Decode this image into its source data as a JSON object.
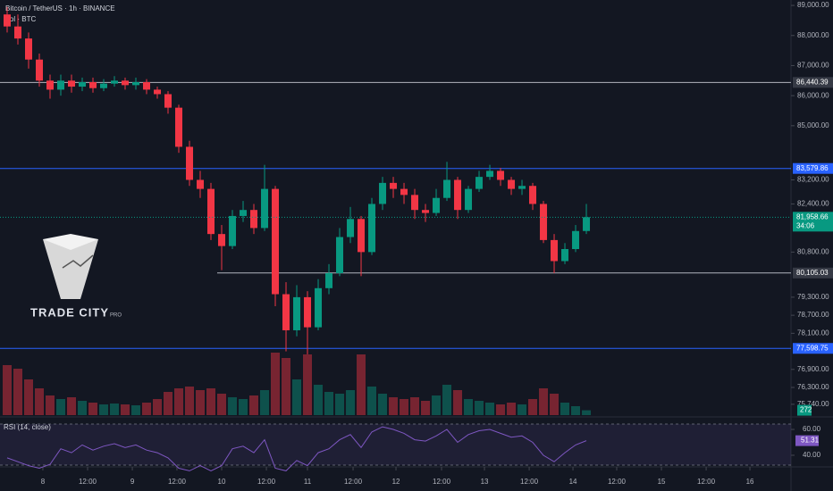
{
  "chart_data": {
    "type": "candlestick",
    "title": "Bitcoin / TetherUS · 1h · BINANCE",
    "volume_label": "Vol · BTC",
    "brand": "TRADE CITY",
    "brand_suffix": "PRO",
    "up_color": "#089981",
    "down_color": "#f23645",
    "open": [
      88700,
      88300,
      87900,
      87200,
      86500,
      86200,
      86500,
      86300,
      86450,
      86250,
      86400,
      86500,
      86350,
      86450,
      86200,
      86050,
      85600,
      84300,
      83200,
      82900,
      81400,
      81000,
      82000,
      82200,
      81600,
      82900,
      79400,
      78200,
      79300,
      78300,
      79600,
      80100,
      81300,
      81900,
      80800,
      82400,
      83100,
      82900,
      82700,
      82200,
      82100,
      82600,
      83200,
      82200,
      82900,
      83300,
      83500,
      83200,
      82900,
      83000,
      82400,
      81200,
      80500,
      80900,
      81500
    ],
    "high": [
      88950,
      88700,
      88100,
      87400,
      86700,
      86700,
      86700,
      86600,
      86600,
      86550,
      86650,
      86600,
      86600,
      86550,
      86300,
      86150,
      85700,
      84500,
      83500,
      83100,
      81700,
      82200,
      82500,
      82400,
      83700,
      83000,
      79800,
      79700,
      79500,
      79900,
      80400,
      81600,
      82300,
      82000,
      82600,
      83300,
      83300,
      83100,
      82900,
      82400,
      82900,
      83800,
      83300,
      83000,
      83500,
      83700,
      83600,
      83300,
      83200,
      83100,
      82500,
      81400,
      81100,
      81700,
      82400
    ],
    "low": [
      88100,
      87700,
      86900,
      86300,
      85900,
      86000,
      86100,
      86150,
      86100,
      86150,
      86300,
      86200,
      86200,
      86050,
      85900,
      85400,
      84100,
      83000,
      82600,
      81200,
      80200,
      80900,
      81800,
      81400,
      81500,
      79000,
      77500,
      78000,
      77400,
      78200,
      79400,
      80000,
      81100,
      80000,
      80700,
      82200,
      82600,
      82400,
      81900,
      81800,
      82000,
      82500,
      81900,
      82100,
      82800,
      83200,
      83000,
      82700,
      82700,
      82200,
      81100,
      80100,
      80400,
      80800,
      81400
    ],
    "close": [
      88300,
      87900,
      87200,
      86500,
      86200,
      86500,
      86300,
      86450,
      86250,
      86400,
      86500,
      86350,
      86450,
      86200,
      86050,
      85600,
      84300,
      83200,
      82900,
      81400,
      81000,
      82000,
      82200,
      81600,
      82900,
      79400,
      78200,
      79300,
      78300,
      79600,
      80100,
      81300,
      81900,
      80800,
      82400,
      83100,
      82900,
      82700,
      82200,
      82100,
      82600,
      83200,
      82200,
      82900,
      83300,
      83500,
      83200,
      82900,
      83000,
      82400,
      81200,
      80500,
      80900,
      81500,
      81958.66
    ],
    "xlim": [
      -0.667,
      73.08
    ],
    "xticks": [
      {
        "value": 3.33,
        "label": "8"
      },
      {
        "value": 7.5,
        "label": "12:00"
      },
      {
        "value": 11.67,
        "label": "9"
      },
      {
        "value": 15.83,
        "label": "12:00"
      },
      {
        "value": 20,
        "label": "10"
      },
      {
        "value": 24.17,
        "label": "12:00"
      },
      {
        "value": 28,
        "label": "11"
      },
      {
        "value": 32.25,
        "label": "12:00"
      },
      {
        "value": 36.25,
        "label": "12"
      },
      {
        "value": 40.5,
        "label": "12:00"
      },
      {
        "value": 44.5,
        "label": "13"
      },
      {
        "value": 48.67,
        "label": "12:00"
      },
      {
        "value": 52.75,
        "label": "14"
      },
      {
        "value": 56.83,
        "label": "12:00"
      },
      {
        "value": 61,
        "label": "15"
      },
      {
        "value": 65.17,
        "label": "12:00"
      },
      {
        "value": 69.25,
        "label": "16"
      }
    ],
    "ylim": [
      75380,
      89180
    ],
    "yticks": [
      {
        "value": 89000,
        "label": "89,000.00"
      },
      {
        "value": 88000,
        "label": "88,000.00"
      },
      {
        "value": 87000,
        "label": "87,000.00"
      },
      {
        "value": 86000,
        "label": "86,000.00"
      },
      {
        "value": 85000,
        "label": "85,000.00"
      },
      {
        "value": 83200,
        "label": "83,200.00"
      },
      {
        "value": 82400,
        "label": "82,400.00"
      },
      {
        "value": 80800,
        "label": "80,800.00"
      },
      {
        "value": 79300,
        "label": "79,300.00"
      },
      {
        "value": 78700,
        "label": "78,700.00"
      },
      {
        "value": 78100,
        "label": "78,100.00"
      },
      {
        "value": 76900,
        "label": "76,900.00"
      },
      {
        "value": 76300,
        "label": "76,300.00"
      },
      {
        "value": 75740,
        "label": "75,740.00"
      }
    ],
    "levels": [
      {
        "value": 86440.39,
        "label": "86,440.39",
        "color": "#b2b5be"
      },
      {
        "value": 83579.86,
        "label": "83,579.86",
        "color": "#2962ff"
      },
      {
        "value": 80105.03,
        "label": "80,105.03",
        "color": "#b2b5be"
      },
      {
        "value": 77598.75,
        "label": "77,598.75",
        "color": "#2962ff"
      }
    ],
    "last_price": {
      "value": 81958.66,
      "label": "81,958.66",
      "countdown": "34:06",
      "color": "#089981"
    },
    "volume": {
      "values": [
        2800,
        2600,
        2000,
        1500,
        1100,
        900,
        1000,
        800,
        700,
        600,
        650,
        600,
        550,
        700,
        900,
        1300,
        1500,
        1600,
        1400,
        1500,
        1200,
        1000,
        900,
        1100,
        1400,
        3500,
        3200,
        2000,
        3400,
        1700,
        1300,
        1200,
        1400,
        3400,
        1600,
        1200,
        1000,
        900,
        1000,
        800,
        1100,
        1700,
        1400,
        900,
        800,
        700,
        600,
        700,
        600,
        900,
        1500,
        1200,
        700,
        500,
        272
      ],
      "vlim": [
        0,
        4000
      ]
    },
    "rsi": {
      "title": "RSI (14, close)",
      "color": "#7e57c2",
      "values": [
        38,
        35,
        32,
        30,
        33,
        45,
        42,
        48,
        44,
        47,
        49,
        46,
        48,
        44,
        42,
        38,
        30,
        28,
        32,
        28,
        32,
        45,
        47,
        42,
        52,
        30,
        28,
        36,
        32,
        42,
        45,
        52,
        56,
        46,
        58,
        62,
        60,
        57,
        52,
        51,
        55,
        60,
        50,
        56,
        59,
        60,
        57,
        54,
        55,
        50,
        40,
        35,
        42,
        48,
        51.31
      ],
      "ylim": [
        31.7,
        69
      ],
      "yticks": [
        {
          "value": 60,
          "label": "60.00"
        },
        {
          "value": 40,
          "label": "40.00"
        }
      ]
    }
  }
}
